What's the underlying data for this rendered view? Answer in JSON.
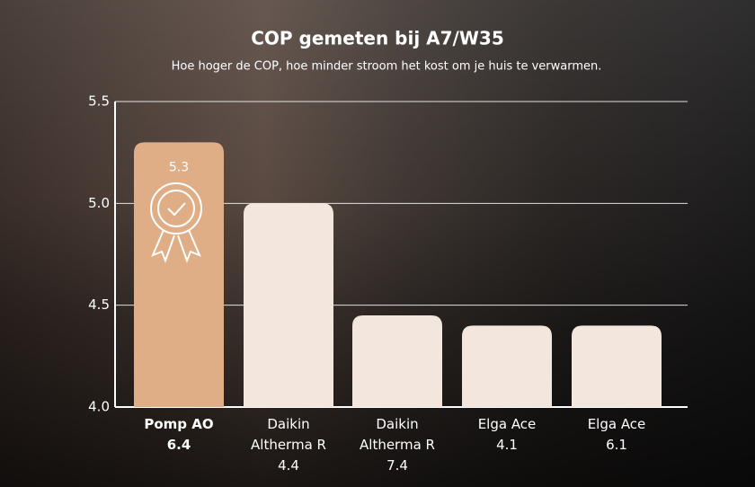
{
  "chart_data": {
    "type": "bar",
    "title": "COP gemeten bij A7/W35",
    "subtitle": "Hoe hoger de COP, hoe minder stroom het kost om je huis te verwarmen.",
    "categories": [
      "Pomp AO 6.4",
      "Daikin Altherma R 4.4",
      "Daikin Altherma R 7.4",
      "Elga Ace 4.1",
      "Elga Ace 6.1"
    ],
    "values": [
      5.3,
      5.0,
      4.45,
      4.4,
      4.4
    ],
    "value_labels": [
      "5.3",
      null,
      null,
      null,
      null
    ],
    "colors": [
      "#dfae86",
      "#f2e6dd",
      "#f2e6dd",
      "#f2e6dd",
      "#f2e6dd"
    ],
    "ylim": [
      4.0,
      5.5
    ],
    "yticks": [
      {
        "value": 4,
        "label": "4.0"
      },
      4.5,
      {
        "value": 5,
        "label": "5.0"
      },
      5.5
    ],
    "grid": true
  }
}
